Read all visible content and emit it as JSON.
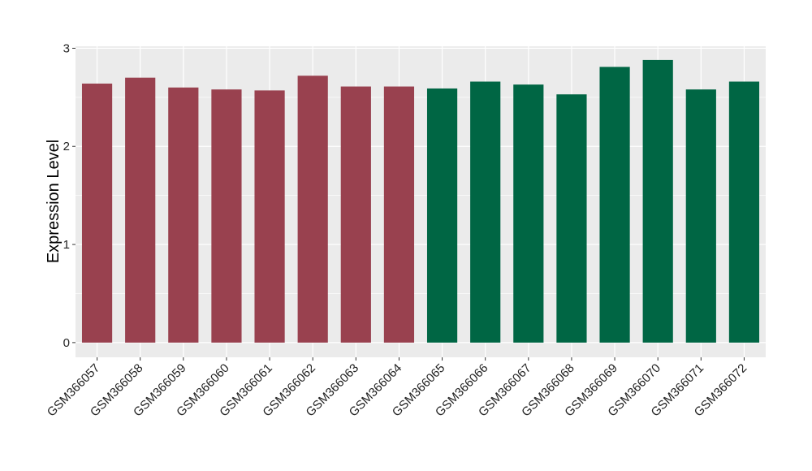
{
  "chart_data": {
    "type": "bar",
    "categories": [
      "GSM366057",
      "GSM366058",
      "GSM366059",
      "GSM366060",
      "GSM366061",
      "GSM366062",
      "GSM366063",
      "GSM366064",
      "GSM366065",
      "GSM366066",
      "GSM366067",
      "GSM366068",
      "GSM366069",
      "GSM366070",
      "GSM366071",
      "GSM366072"
    ],
    "values": [
      2.64,
      2.7,
      2.6,
      2.58,
      2.57,
      2.72,
      2.61,
      2.61,
      2.59,
      2.66,
      2.63,
      2.53,
      2.81,
      2.88,
      2.58,
      2.66
    ],
    "groups": [
      0,
      0,
      0,
      0,
      0,
      0,
      0,
      0,
      1,
      1,
      1,
      1,
      1,
      1,
      1,
      1
    ],
    "group_colors": [
      "#99414f",
      "#006644"
    ],
    "title": "",
    "xlabel": "",
    "ylabel": "Expression Level",
    "ylim": [
      -0.15,
      3.02
    ],
    "yticks": [
      0,
      1,
      2,
      3
    ],
    "grid": true,
    "legend": "none",
    "panel_color": "#ebebeb",
    "grid_color": "#ffffff"
  }
}
